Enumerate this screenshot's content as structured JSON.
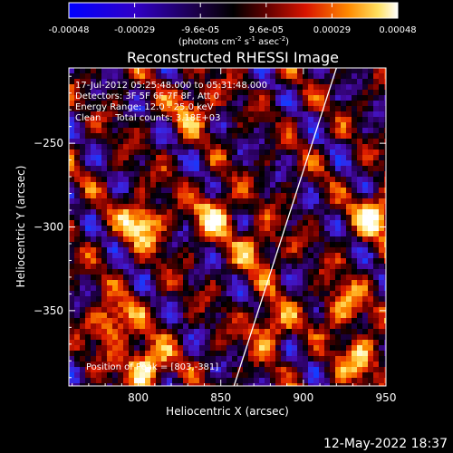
{
  "colorbar": {
    "ticks": [
      "-0.00048",
      "-0.00029",
      "-9.6e-05",
      "9.6e-05",
      "0.00029",
      "0.00048"
    ],
    "unit_main": "(photons cm",
    "unit_exp1": "-2",
    "unit_mid": " s",
    "unit_exp2": "-1",
    "unit_end": " asec",
    "unit_exp3": "-2",
    "unit_close": ")"
  },
  "chart_data": {
    "type": "heatmap",
    "title": "Reconstructed RHESSI Image",
    "xlabel": "Heliocentric X (arcsec)",
    "ylabel": "Heliocentric Y (arcsec)",
    "xlim": [
      758,
      950
    ],
    "ylim": [
      -395,
      -205
    ],
    "xticks": [
      800,
      850,
      900,
      950
    ],
    "yticks": [
      -250,
      -300,
      -350
    ],
    "colormap": "black-purple-blue / black-red-orange-yellow-white",
    "limb_line": {
      "x": [
        858,
        920
      ],
      "y": [
        -395,
        -205
      ]
    },
    "bright_sources": [
      {
        "x": 803,
        "y": -381,
        "intensity": 1.0
      },
      {
        "x": 801,
        "y": -296,
        "intensity": 0.9
      },
      {
        "x": 845,
        "y": -291,
        "intensity": 0.75
      },
      {
        "x": 783,
        "y": -355,
        "intensity": 0.8
      },
      {
        "x": 942,
        "y": -292,
        "intensity": 0.85
      },
      {
        "x": 934,
        "y": -376,
        "intensity": 0.75
      },
      {
        "x": 878,
        "y": -358,
        "intensity": 0.65
      },
      {
        "x": 832,
        "y": -226,
        "intensity": 0.55
      },
      {
        "x": 871,
        "y": -312,
        "intensity": 0.6
      },
      {
        "x": 922,
        "y": -345,
        "intensity": 0.6
      }
    ],
    "annotations": [
      "17-Jul-2012 05:25:48.000 to 05:31:48.000",
      "Detectors: 3F 5F 6F 7F 8F, Att 0",
      "Energy Range: 12.0 - 25.0 keV",
      "Clean     Total counts: 3.18E+03",
      "Position of Peak = [803,-381]"
    ]
  },
  "footer": {
    "timestamp": "12-May-2022 18:37"
  }
}
